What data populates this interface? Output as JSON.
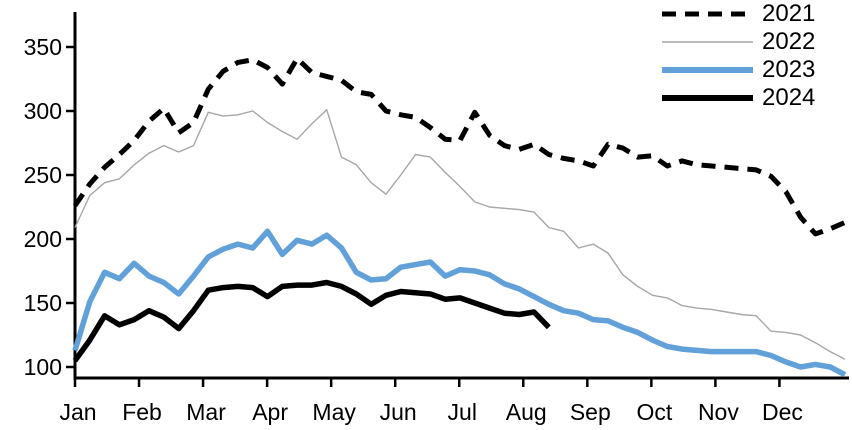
{
  "chart_data": {
    "type": "line",
    "title": "",
    "x_axis": {
      "tick_labels": [
        "Jan",
        "Feb",
        "Mar",
        "Apr",
        "May",
        "Jun",
        "Jul",
        "Aug",
        "Sep",
        "Oct",
        "Nov",
        "Dec"
      ]
    },
    "y_axis": {
      "tick_labels": [
        "100",
        "150",
        "200",
        "250",
        "300",
        "350"
      ],
      "ticks": [
        100,
        150,
        200,
        250,
        300,
        350
      ],
      "ylim": [
        100,
        375
      ]
    },
    "grid": "off",
    "legend_position": "top-right",
    "series": [
      {
        "name": "2021",
        "style": "dashed",
        "color": "#000000",
        "values": [
          226,
          243,
          256,
          266,
          277,
          292,
          302,
          283,
          291,
          317,
          331,
          338,
          340,
          334,
          321,
          341,
          330,
          327,
          324,
          315,
          313,
          300,
          297,
          295,
          287,
          278,
          277,
          299,
          281,
          273,
          270,
          274,
          266,
          263,
          261,
          257,
          274,
          271,
          264,
          265,
          257,
          261,
          258,
          257,
          256,
          255,
          254,
          249,
          237,
          217,
          204,
          208,
          213
        ]
      },
      {
        "name": "2022",
        "style": "thin-solid",
        "color": "#A6A6A6",
        "values": [
          209,
          234,
          244,
          247,
          258,
          267,
          273,
          268,
          273,
          299,
          296,
          297,
          300,
          291,
          284,
          278,
          290,
          301,
          264,
          258,
          244,
          235,
          250,
          266,
          264,
          252,
          241,
          229,
          225,
          224,
          223,
          221,
          209,
          206,
          193,
          196,
          189,
          172,
          163,
          156,
          154,
          148,
          146,
          145,
          143,
          141,
          140,
          128,
          127,
          125,
          119,
          112,
          106
        ]
      },
      {
        "name": "2023",
        "style": "solid",
        "color": "#61A0D8",
        "values": [
          113,
          151,
          174,
          169,
          181,
          171,
          166,
          157,
          171,
          186,
          192,
          196,
          193,
          206,
          188,
          199,
          196,
          203,
          193,
          174,
          168,
          169,
          178,
          180,
          182,
          171,
          176,
          175,
          172,
          165,
          161,
          155,
          149,
          144,
          142,
          137,
          136,
          131,
          127,
          121,
          116,
          114,
          113,
          112,
          112,
          112,
          112,
          109,
          104,
          100,
          102,
          100,
          94
        ]
      },
      {
        "name": "2024",
        "style": "solid",
        "color": "#000000",
        "values": [
          105,
          121,
          140,
          133,
          137,
          144,
          139,
          130,
          144,
          160,
          162,
          163,
          162,
          155,
          163,
          164,
          164,
          166,
          163,
          157,
          149,
          156,
          159,
          158,
          157,
          153,
          154,
          150,
          146,
          142,
          141,
          143,
          131
        ]
      }
    ]
  }
}
